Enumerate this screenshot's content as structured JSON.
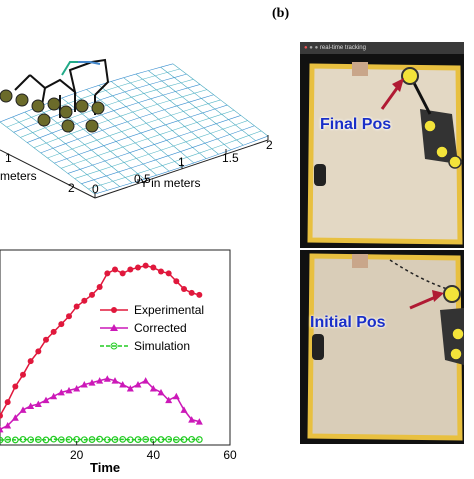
{
  "surface_plot": {
    "y_axis_label": "Y in meters",
    "x_axis_label_fragment": "meters",
    "y_ticks": [
      "0",
      "0.5",
      "1",
      "1.5",
      "2"
    ],
    "x_ticks": [
      "1",
      "2"
    ],
    "x_tick_mark": "0"
  },
  "chart_data": {
    "type": "line",
    "xlabel": "Time",
    "ylabel": "",
    "title": "",
    "xlim": [
      0,
      60
    ],
    "ylim": [
      0,
      100
    ],
    "x_ticks": [
      "20",
      "40",
      "60"
    ],
    "legend_position": "center-right",
    "series": [
      {
        "name": "Experimental",
        "color": "#e0183c",
        "marker": "circle",
        "x": [
          0,
          2,
          4,
          6,
          8,
          10,
          12,
          14,
          16,
          18,
          20,
          22,
          24,
          26,
          28,
          30,
          32,
          34,
          36,
          38,
          40,
          42,
          44,
          46,
          48,
          50,
          52
        ],
        "y": [
          15,
          22,
          30,
          36,
          43,
          48,
          54,
          58,
          62,
          66,
          71,
          74,
          77,
          81,
          88,
          90,
          88,
          90,
          91,
          92,
          91,
          89,
          88,
          84,
          80,
          78,
          77
        ]
      },
      {
        "name": "Corrected",
        "color": "#cc19b8",
        "marker": "triangle",
        "x": [
          0,
          2,
          4,
          6,
          8,
          10,
          12,
          14,
          16,
          18,
          20,
          22,
          24,
          26,
          28,
          30,
          32,
          34,
          36,
          38,
          40,
          42,
          44,
          46,
          48,
          50,
          52
        ],
        "y": [
          8,
          10,
          14,
          18,
          20,
          21,
          23,
          25,
          27,
          28,
          29,
          31,
          32,
          33,
          34,
          33,
          31,
          29,
          31,
          33,
          29,
          27,
          23,
          25,
          18,
          13,
          12
        ]
      },
      {
        "name": "Simulation",
        "color": "#22cc22",
        "marker": "circle-dashed",
        "x": [
          0,
          2,
          4,
          6,
          8,
          10,
          12,
          14,
          16,
          18,
          20,
          22,
          24,
          26,
          28,
          30,
          32,
          34,
          36,
          38,
          40,
          42,
          44,
          46,
          48,
          50,
          52
        ],
        "y": [
          2.5,
          2.8,
          2.6,
          2.9,
          2.7,
          2.8,
          2.6,
          3.0,
          2.7,
          2.8,
          2.9,
          2.7,
          2.8,
          3.0,
          2.7,
          2.8,
          2.9,
          2.7,
          2.8,
          2.9,
          2.7,
          2.8,
          2.9,
          2.7,
          2.8,
          2.9,
          2.8
        ]
      }
    ]
  },
  "tracking": {
    "panel_letter": "(b)",
    "window_title": "real-time tracking",
    "top_label": "Final Pos",
    "bottom_label": "Initial Pos"
  },
  "colors": {
    "arrow": "#b01a33",
    "label": "#1a2fc8",
    "tape": "#e8c040",
    "sand": "#d9cdb8"
  }
}
